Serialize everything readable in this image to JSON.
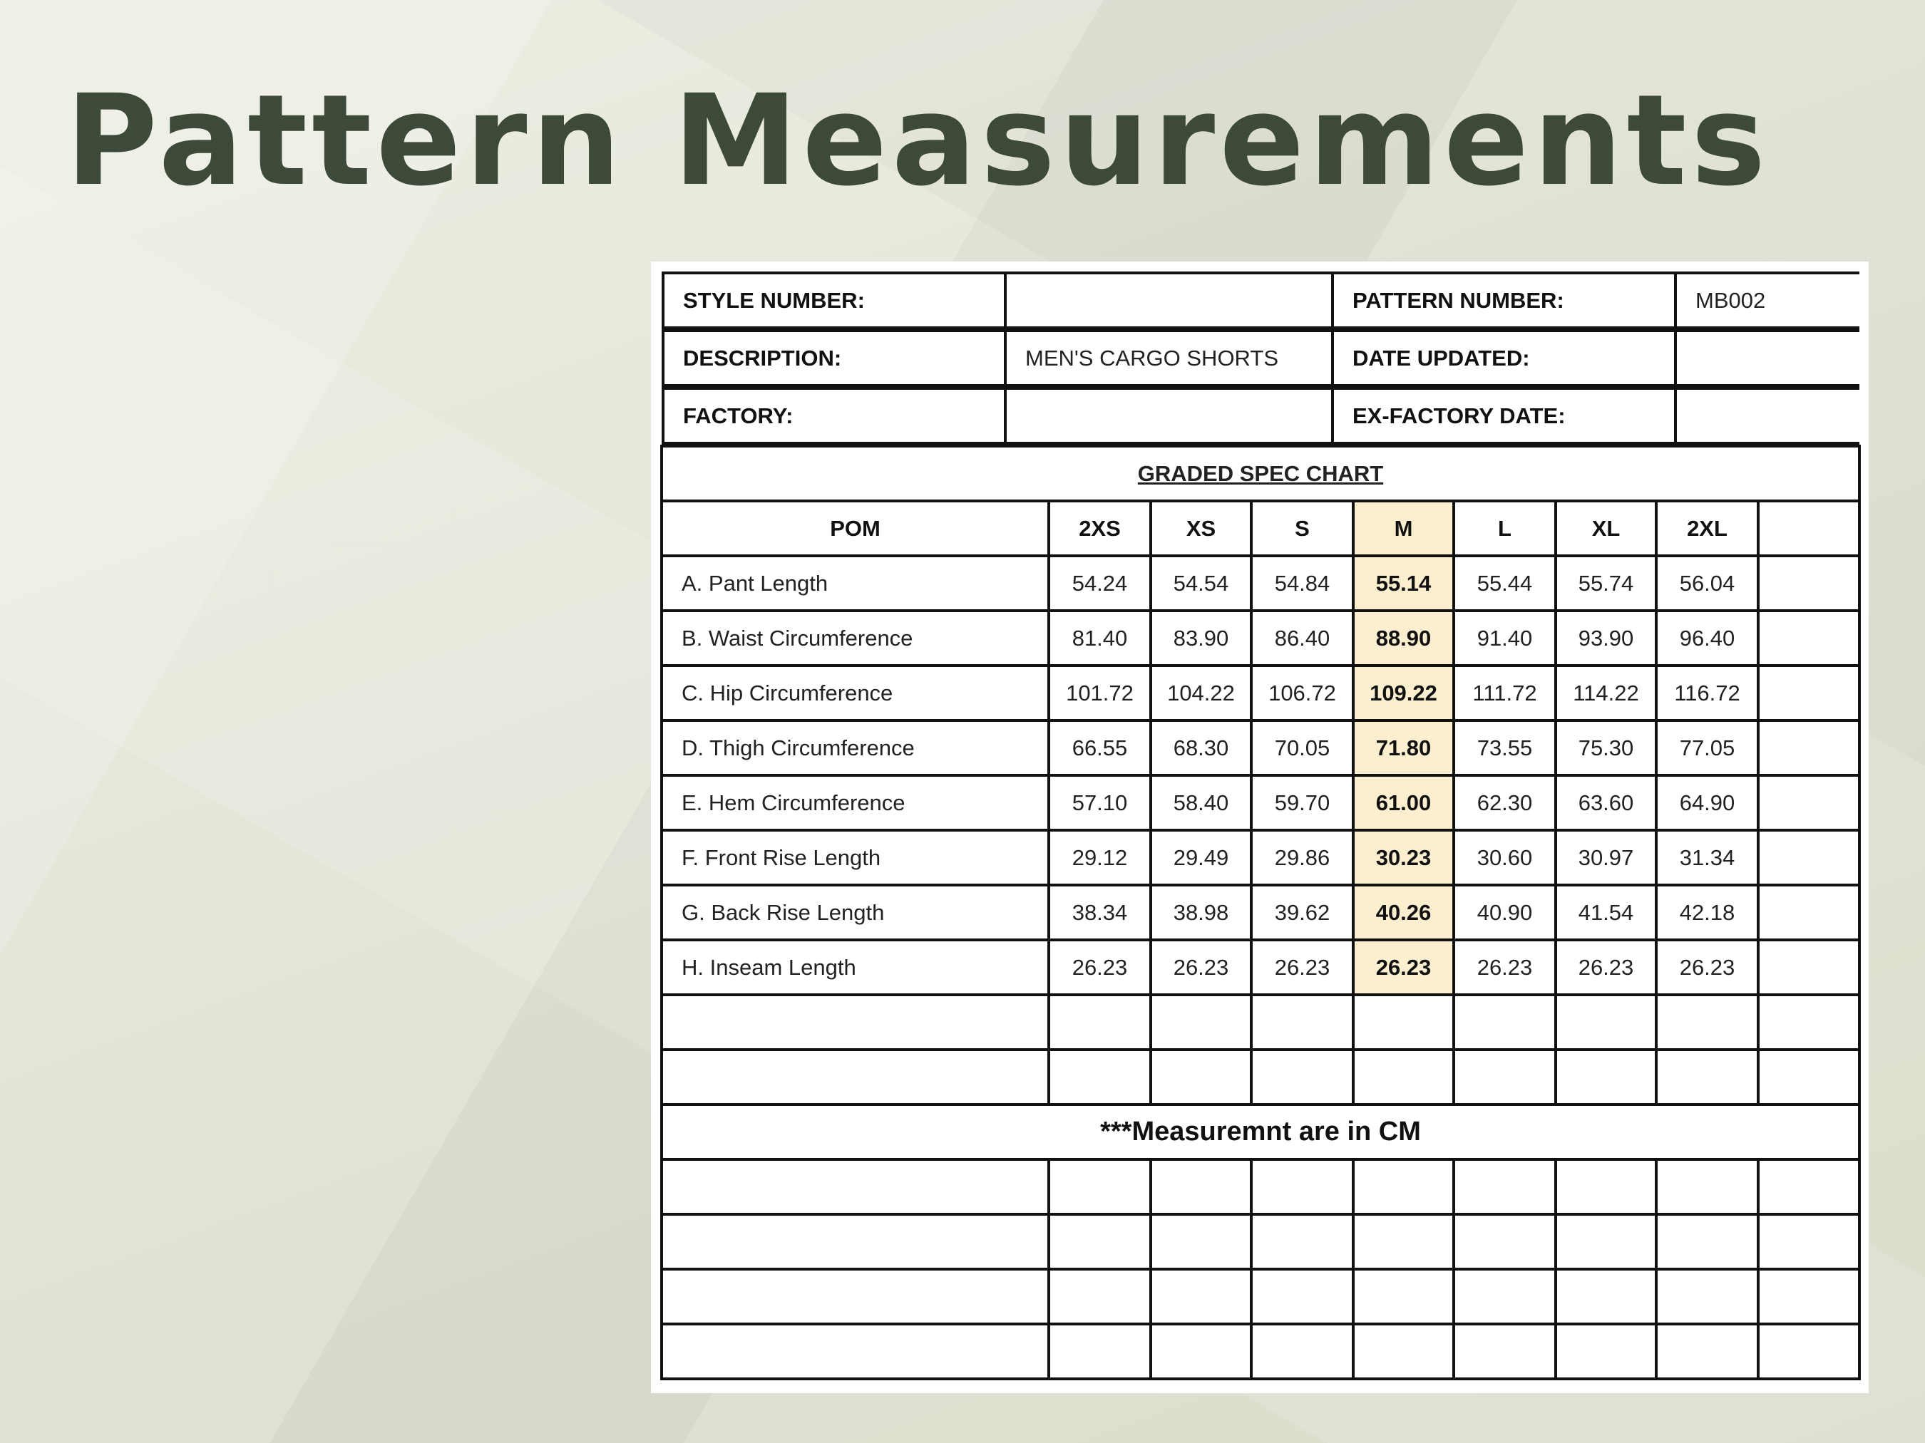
{
  "title": "Pattern Measurements",
  "info": [
    {
      "label1": "STYLE NUMBER:",
      "value1": "",
      "label2": "PATTERN NUMBER:",
      "value2": "MB002"
    },
    {
      "label1": "DESCRIPTION:",
      "value1": "MEN'S CARGO SHORTS",
      "label2": "DATE UPDATED:",
      "value2": ""
    },
    {
      "label1": "FACTORY:",
      "value1": "",
      "label2": "EX-FACTORY DATE:",
      "value2": ""
    }
  ],
  "chart_title": "GRADED SPEC CHART",
  "columns": [
    "POM",
    "2XS",
    "XS",
    "S",
    "M",
    "L",
    "XL",
    "2XL",
    ""
  ],
  "highlight_column": "M",
  "highlight_color": "#fcefcf",
  "rows": [
    {
      "pom": "A. Pant Length",
      "values": [
        "54.24",
        "54.54",
        "54.84",
        "55.14",
        "55.44",
        "55.74",
        "56.04"
      ]
    },
    {
      "pom": "B. Waist Circumference",
      "values": [
        "81.40",
        "83.90",
        "86.40",
        "88.90",
        "91.40",
        "93.90",
        "96.40"
      ]
    },
    {
      "pom": "C. Hip Circumference",
      "values": [
        "101.72",
        "104.22",
        "106.72",
        "109.22",
        "111.72",
        "114.22",
        "116.72"
      ]
    },
    {
      "pom": "D. Thigh Circumference",
      "values": [
        "66.55",
        "68.30",
        "70.05",
        "71.80",
        "73.55",
        "75.30",
        "77.05"
      ]
    },
    {
      "pom": "E. Hem Circumference",
      "values": [
        "57.10",
        "58.40",
        "59.70",
        "61.00",
        "62.30",
        "63.60",
        "64.90"
      ]
    },
    {
      "pom": "F. Front Rise Length",
      "values": [
        "29.12",
        "29.49",
        "29.86",
        "30.23",
        "30.60",
        "30.97",
        "31.34"
      ]
    },
    {
      "pom": "G. Back Rise Length",
      "values": [
        "38.34",
        "38.98",
        "39.62",
        "40.26",
        "40.90",
        "41.54",
        "42.18"
      ]
    },
    {
      "pom": "H. Inseam Length",
      "values": [
        "26.23",
        "26.23",
        "26.23",
        "26.23",
        "26.23",
        "26.23",
        "26.23"
      ]
    }
  ],
  "note": "***Measuremnt are in CM"
}
